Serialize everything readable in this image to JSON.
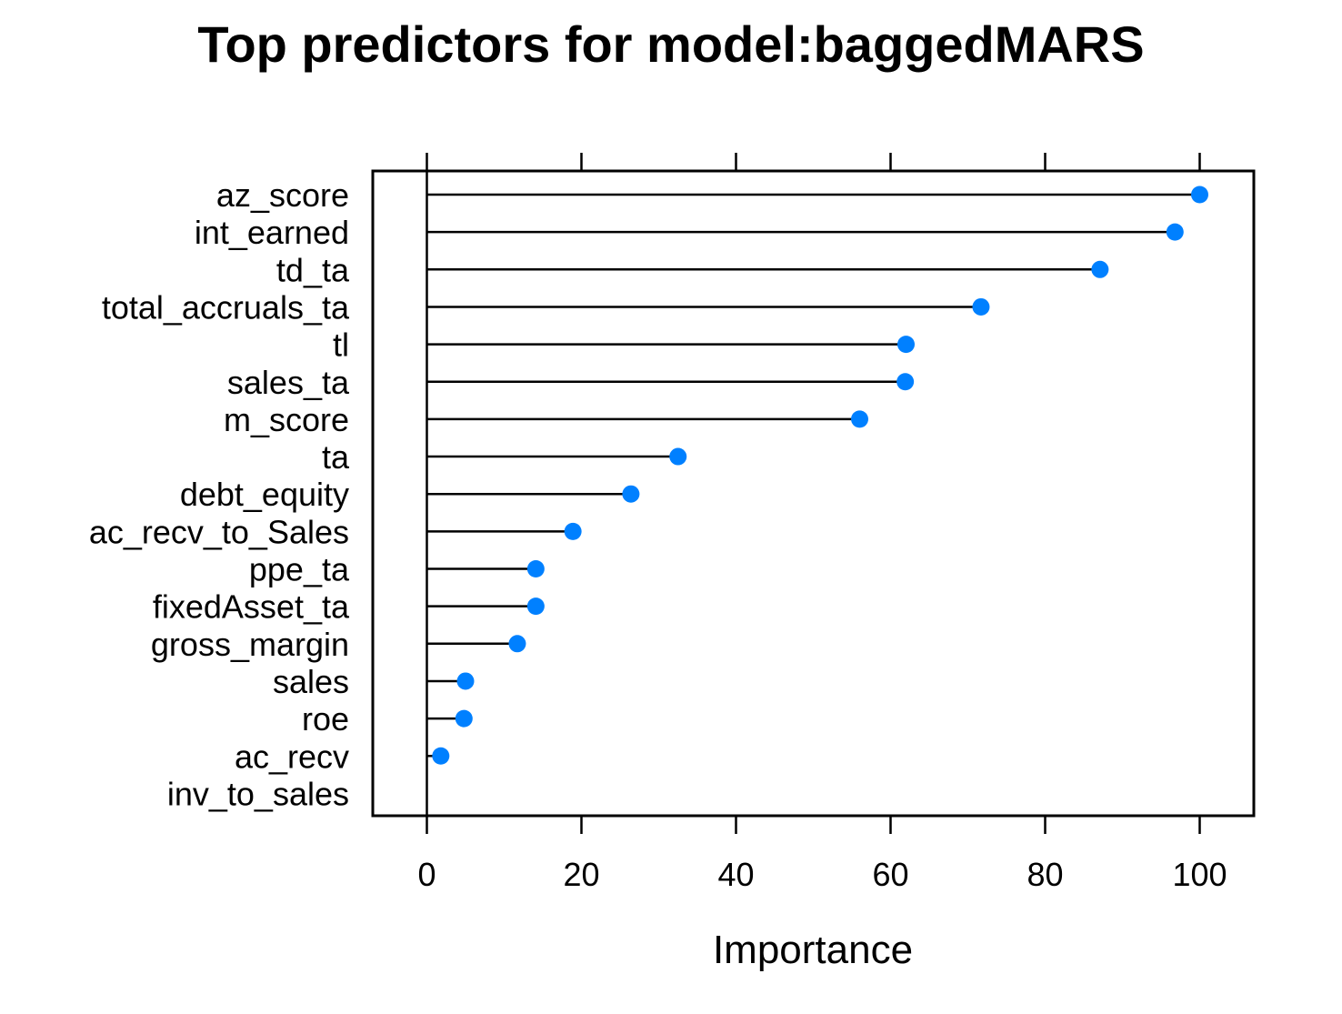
{
  "chart_data": {
    "type": "dotplot",
    "title": "Top predictors for model:baggedMARS",
    "xlabel": "Importance",
    "ylabel": "",
    "xlim": [
      -7,
      107
    ],
    "xticks": [
      0,
      20,
      40,
      60,
      80,
      100
    ],
    "grid": false,
    "legend": "none",
    "categories": [
      "az_score",
      "int_earned",
      "td_ta",
      "total_accruals_ta",
      "tl",
      "sales_ta",
      "m_score",
      "ta",
      "debt_equity",
      "ac_recv_to_Sales",
      "ppe_ta",
      "fixedAsset_ta",
      "gross_margin",
      "sales",
      "roe",
      "ac_recv",
      "inv_to_sales"
    ],
    "values": [
      100,
      96.8,
      87.1,
      71.7,
      62.0,
      61.9,
      56.0,
      32.5,
      26.4,
      18.9,
      14.1,
      14.1,
      11.7,
      5.0,
      4.8,
      1.8,
      0
    ],
    "colors": {
      "point": "#0080ff",
      "line": "#000000",
      "axis": "#000000"
    }
  }
}
